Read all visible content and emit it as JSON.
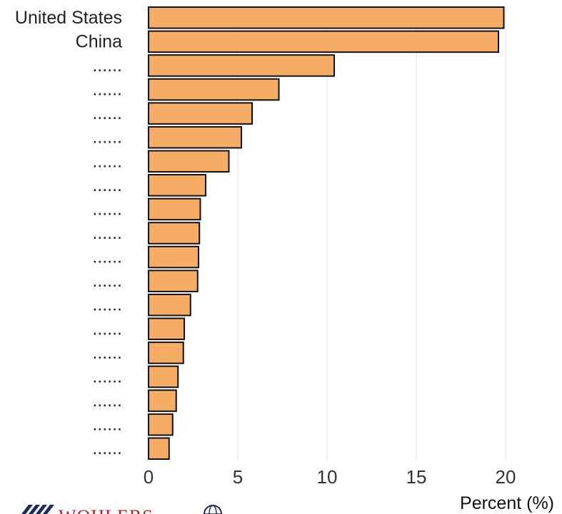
{
  "chart_data": {
    "type": "bar",
    "orientation": "horizontal",
    "categories": [
      "United States",
      "China",
      "......",
      "......",
      "......",
      "......",
      "......",
      "......",
      "......",
      "......",
      "......",
      "......",
      "......",
      "......",
      "......",
      "......",
      "......",
      "......",
      "......"
    ],
    "values": [
      19.9,
      19.6,
      10.4,
      7.3,
      5.8,
      5.2,
      4.5,
      3.2,
      2.9,
      2.85,
      2.8,
      2.75,
      2.35,
      2.0,
      1.95,
      1.65,
      1.55,
      1.35,
      1.15
    ],
    "xlabel": "Percent (%)",
    "xticks": [
      0,
      5,
      10,
      15,
      20
    ],
    "xlim": [
      0,
      22
    ],
    "grid": "vertical",
    "bar_color": "#f5ad65",
    "bar_edge_color": "#111111"
  },
  "branding": {
    "logo_text": "WOHLERS"
  }
}
